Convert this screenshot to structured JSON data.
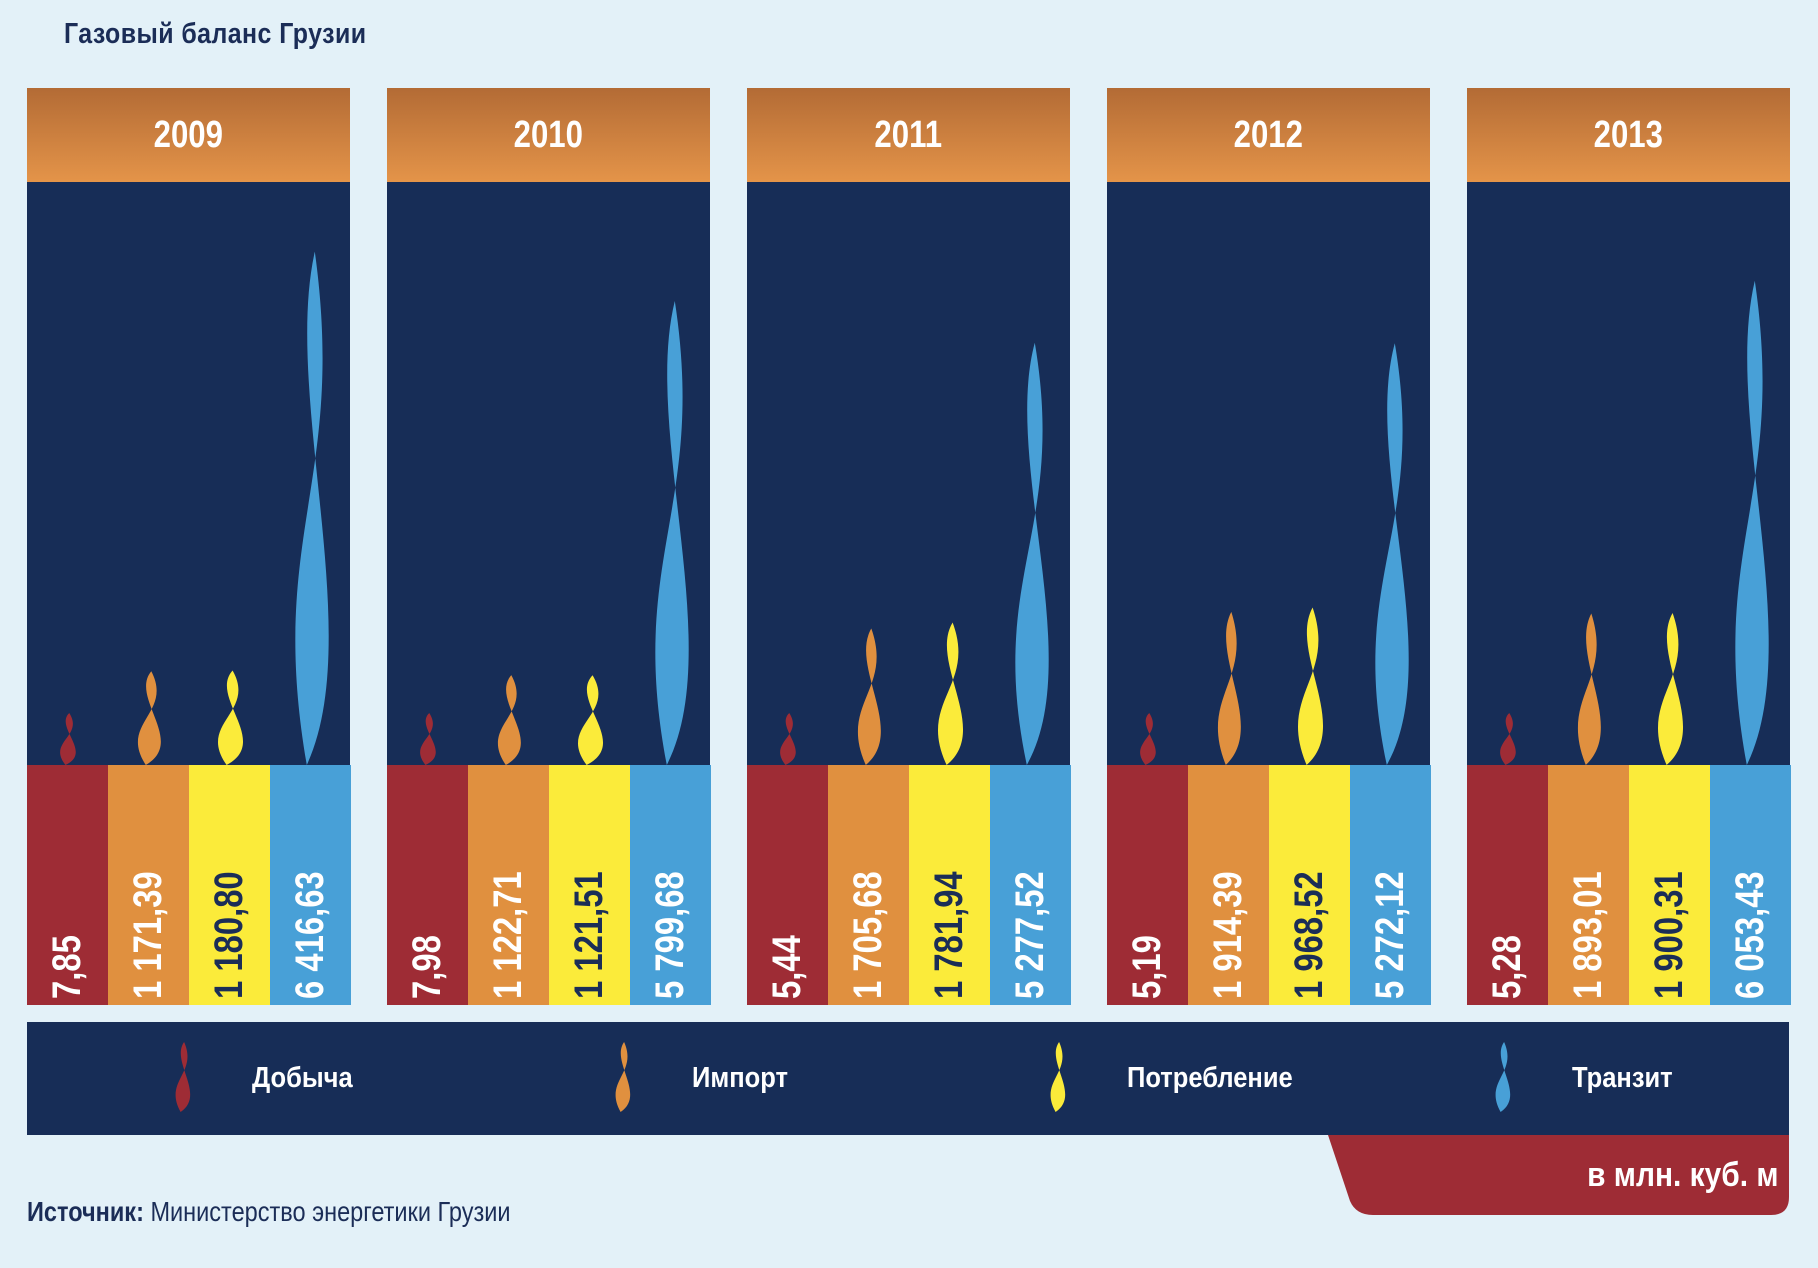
{
  "chart_data": {
    "type": "bar",
    "title": "Газовый баланс Грузии",
    "categories": [
      "2009",
      "2010",
      "2011",
      "2012",
      "2013"
    ],
    "series": [
      {
        "name": "Добыча",
        "color": "#9e2c35",
        "values": [
          7.85,
          7.98,
          5.44,
          5.19,
          5.28
        ],
        "labels": [
          "7,85",
          "7,98",
          "5,44",
          "5,19",
          "5,28"
        ]
      },
      {
        "name": "Импорт",
        "color": "#e0903f",
        "values": [
          1171.39,
          1122.71,
          1705.68,
          1914.39,
          1893.01
        ],
        "labels": [
          "1 171,39",
          "1 122,71",
          "1 705,68",
          "1 914,39",
          "1 893,01"
        ]
      },
      {
        "name": "Потребление",
        "color": "#fbeb3a",
        "values": [
          1180.8,
          1121.51,
          1781.94,
          1968.52,
          1900.31
        ],
        "labels": [
          "1 180,80",
          "1 121,51",
          "1 781,94",
          "1 968,52",
          "1 900,31"
        ]
      },
      {
        "name": "Транзит",
        "color": "#48a0d7",
        "values": [
          6416.63,
          5799.68,
          5277.52,
          5272.12,
          6053.43
        ],
        "labels": [
          "6 416,63",
          "5 799,68",
          "5 277,52",
          "5 272,12",
          "6 053,43"
        ]
      }
    ],
    "units": "в млн. куб. м",
    "legend_position": "bottom"
  },
  "source": {
    "label": "Источник:",
    "text": " Министерство энергетики Грузии"
  },
  "colors": {
    "background": "#e3f1f8",
    "panel": "#172d57",
    "header_top": "#b36b35",
    "header_bottom": "#e49449",
    "units_tab": "#9e2c35"
  }
}
